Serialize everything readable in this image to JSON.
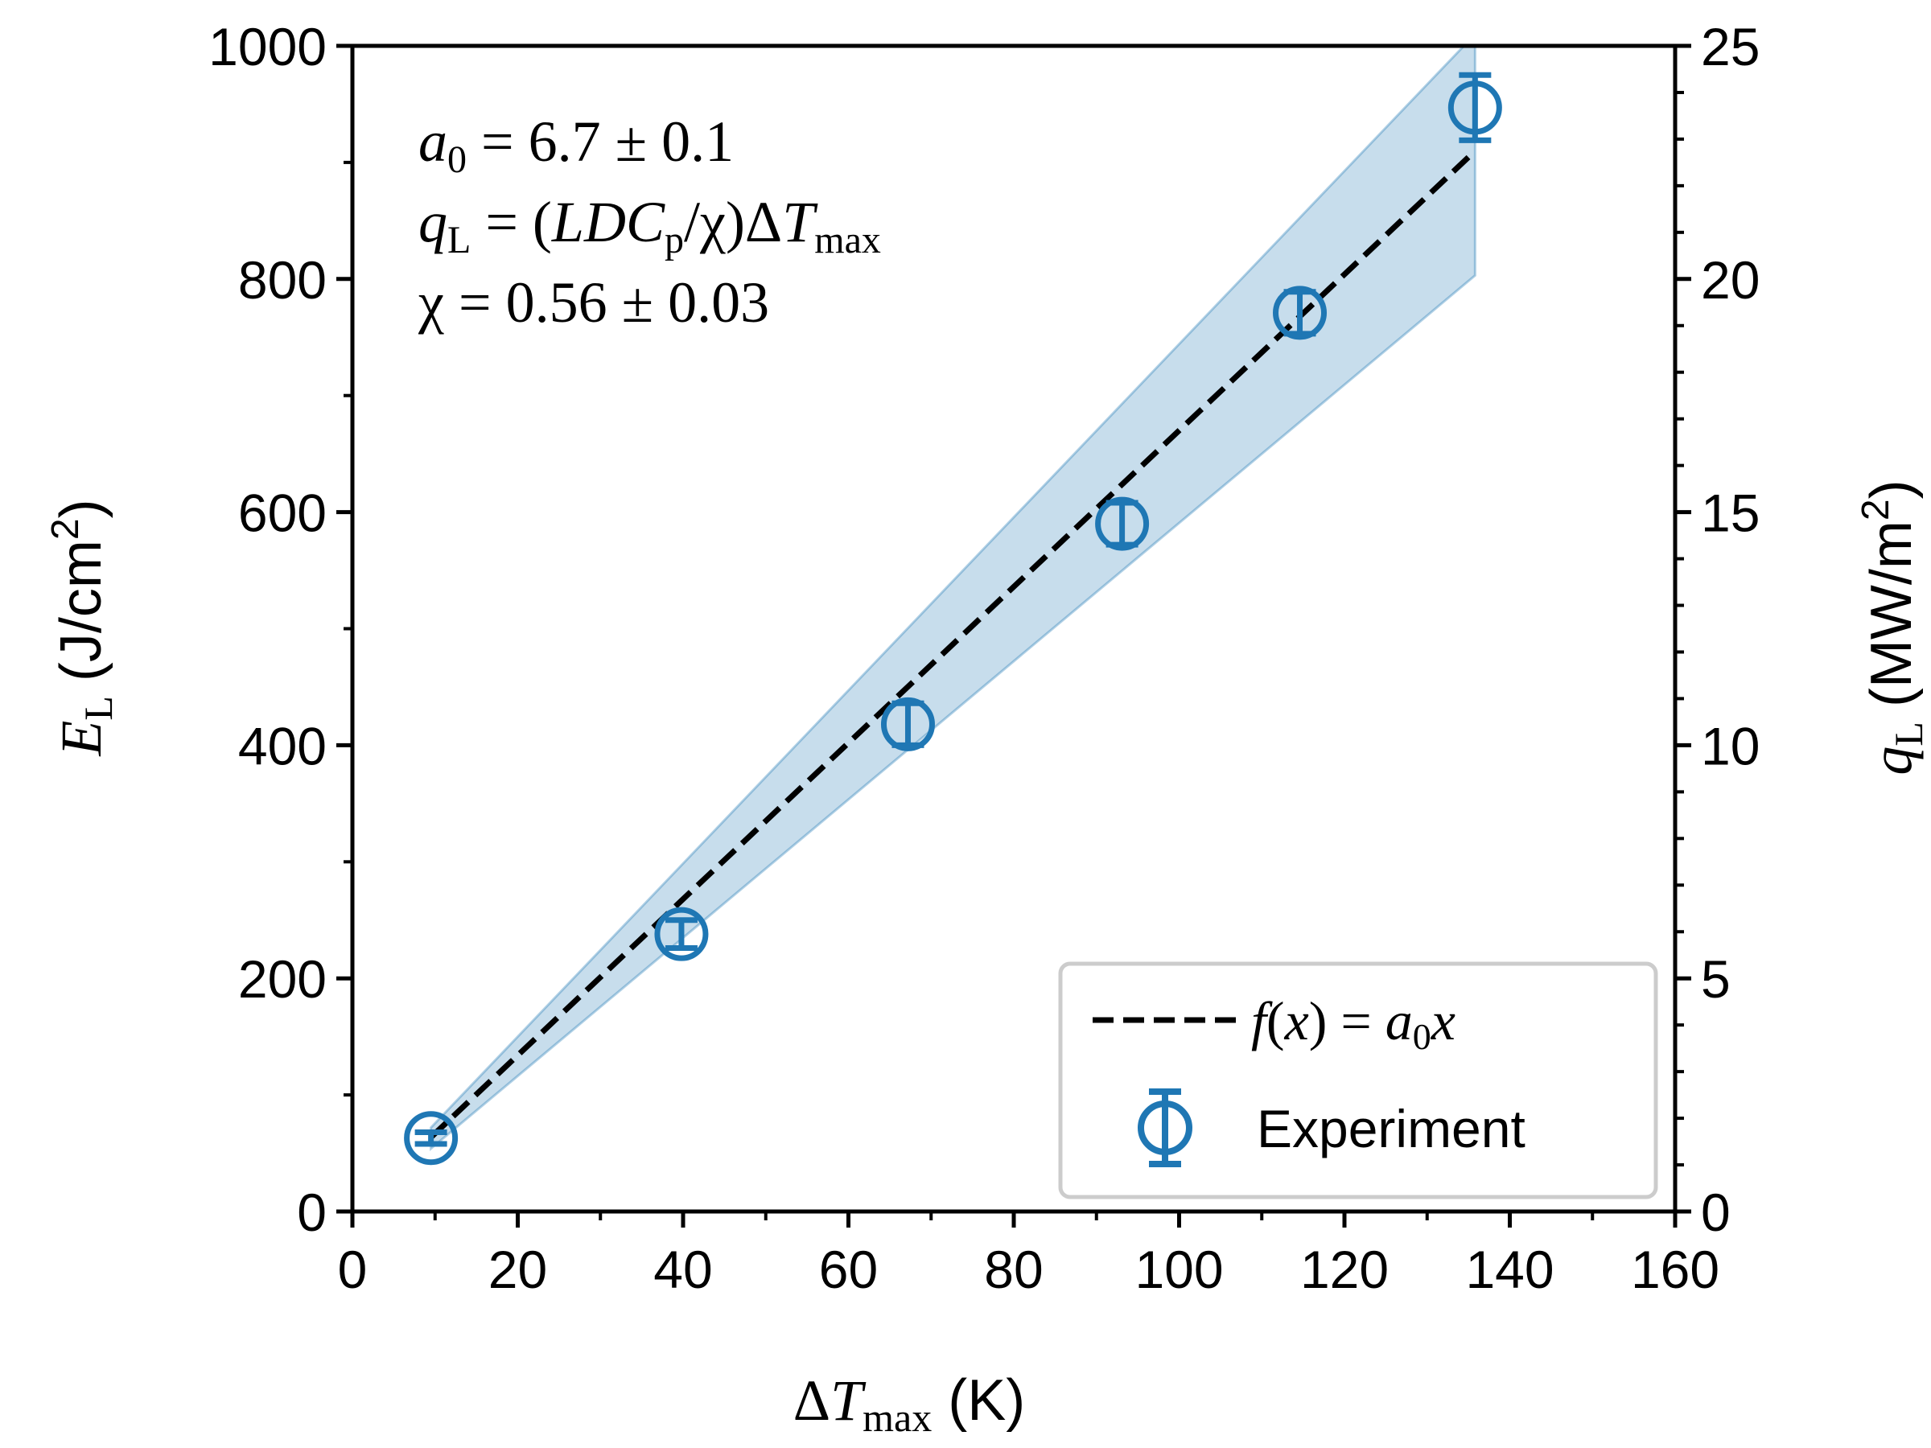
{
  "chart_data": {
    "type": "scatter",
    "x": [
      9.5,
      39.8,
      67.2,
      93.1,
      114.6,
      135.8
    ],
    "y": [
      63,
      238,
      418,
      590,
      771,
      947
    ],
    "y_err": [
      5,
      12,
      18,
      18,
      18,
      28
    ],
    "series": [
      {
        "name": "Experiment",
        "kind": "scatter-errorbar",
        "color": "#1f77b4"
      },
      {
        "name": "f(x) = a0·x",
        "kind": "dashed-line",
        "color": "#000000"
      }
    ],
    "fit": {
      "a0": 6.7,
      "x_start": 9.5,
      "x_end": 135.8
    },
    "band": {
      "x": [
        9.5,
        135.8
      ],
      "lower": [
        54,
        803
      ],
      "upper": [
        72,
        1010
      ],
      "color": "#1f77b4",
      "alpha": 0.25
    },
    "xlim": [
      0,
      160
    ],
    "ylim": [
      0,
      1000
    ],
    "ylim_right": [
      0,
      25
    ],
    "xticks": [
      0,
      20,
      40,
      60,
      80,
      100,
      120,
      140,
      160
    ],
    "xticks_minor": [
      10,
      30,
      50,
      70,
      90,
      110,
      130,
      150
    ],
    "yticks": [
      0,
      200,
      400,
      600,
      800,
      1000
    ],
    "yticks_minor": [
      100,
      300,
      500,
      700,
      900
    ],
    "yticks_right": [
      0,
      5,
      10,
      15,
      20,
      25
    ],
    "yticks_right_minor": [
      1,
      2,
      3,
      4,
      6,
      7,
      8,
      9,
      11,
      12,
      13,
      14,
      16,
      17,
      18,
      19,
      21,
      22,
      23,
      24
    ],
    "grid": false,
    "legend_position": "lower-right"
  },
  "labels": {
    "xtick": [
      "0",
      "20",
      "40",
      "60",
      "80",
      "100",
      "120",
      "140",
      "160"
    ],
    "ytick": [
      "0",
      "200",
      "400",
      "600",
      "800",
      "1000"
    ],
    "ytick_right": [
      "0",
      "5",
      "10",
      "15",
      "20",
      "25"
    ],
    "xlabel": {
      "delta": "Δ",
      "var": "T",
      "sub": "max",
      "unit": " (K)"
    },
    "ylabel": {
      "var": "E",
      "sub": "L",
      "unit": "(J/cm",
      "sup": "2",
      "close": ")"
    },
    "ylabel_right": {
      "var": "q",
      "sub": "L",
      "unit": "(MW/m",
      "sup": "2",
      "close": ")"
    },
    "annotation": {
      "line1": {
        "var": "a",
        "sub": "0",
        "rest": " = 6.7 ± 0.1"
      },
      "line2": {
        "var": "q",
        "sub": "L",
        "eq": " = (",
        "ldc": "LDC",
        "sub2": "p",
        "chi": "/χ)Δ",
        "T": "T",
        "sub3": "max"
      },
      "line3": {
        "text": "χ = 0.56 ± 0.03"
      }
    },
    "legend": {
      "fit": {
        "f": "f",
        "mid": "(",
        "x1": "x",
        "eq": ") = ",
        "a": "a",
        "sub": "0",
        "x2": "x"
      },
      "experiment": "Experiment"
    }
  }
}
